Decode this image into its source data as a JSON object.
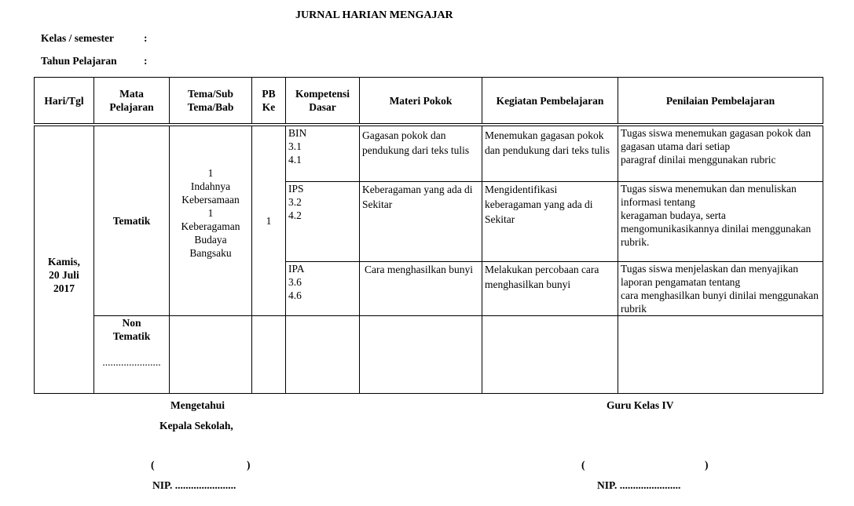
{
  "title": "JURNAL HARIAN MENGAJAR",
  "meta": {
    "kelas_label": "Kelas / semester",
    "tahun_label": "Tahun Pelajaran",
    "colon": ":"
  },
  "headers": [
    "Hari/Tgl",
    "Mata Pelajaran",
    "Tema/Sub Tema/Bab",
    "PB Ke",
    "Kompetensi Dasar",
    "Materi Pokok",
    "Kegiatan Pembelajaran",
    "Penilaian Pembelajaran"
  ],
  "day": {
    "line1": "Kamis,",
    "line2": "20 Juli",
    "line3": "2017"
  },
  "tematik": {
    "label": "Tematik",
    "tema": [
      "1",
      "Indahnya",
      "Kebersamaan",
      "1",
      "Keberagaman",
      "Budaya",
      "Bangsaku"
    ],
    "pb": "1"
  },
  "rows": [
    {
      "kd": [
        "BIN",
        "3.1",
        "4.1"
      ],
      "materi": "Gagasan pokok dan pendukung dari teks tulis",
      "kegiatan": "Menemukan gagasan pokok dan pendukung dari teks tulis",
      "penilaian": [
        "Tugas siswa menemukan gagasan pokok dan gagasan utama dari setiap",
        "paragraf dinilai menggunakan rubric"
      ]
    },
    {
      "kd": [
        "IPS",
        "3.2",
        "4.2"
      ],
      "materi": "Keberagaman yang ada di Sekitar",
      "kegiatan": "Mengidentifikasi keberagaman yang ada di Sekitar",
      "penilaian": [
        "Tugas siswa menemukan dan menuliskan informasi tentang",
        "keragaman budaya, serta mengomunikasikannya dinilai menggunakan",
        "rubrik."
      ]
    },
    {
      "kd": [
        "IPA",
        "3.6",
        "4.6"
      ],
      "materi": "Cara menghasilkan bunyi",
      "kegiatan": "Melakukan percobaan cara menghasilkan bunyi",
      "penilaian": [
        "Tugas siswa menjelaskan dan menyajikan laporan pengamatan tentang",
        "cara menghasilkan bunyi dinilai menggunakan rubrik"
      ]
    }
  ],
  "non_tematik": {
    "line1": "Non",
    "line2": "Tematik",
    "dots": "......................"
  },
  "footer": {
    "left1": "Mengetahui",
    "left2": "Kepala Sekolah,",
    "right1": "Guru Kelas IV",
    "paren_open": "(",
    "paren_close": ")",
    "nip": "NIP. ......................."
  }
}
